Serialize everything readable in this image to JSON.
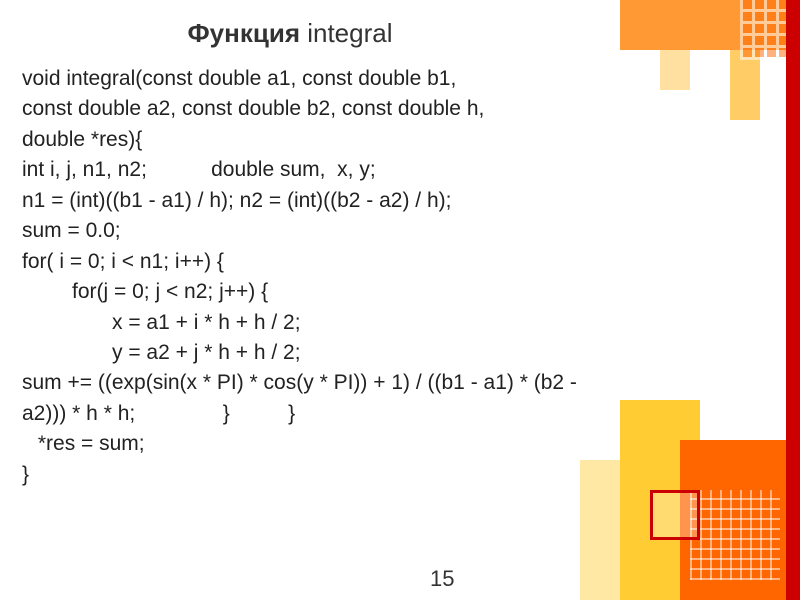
{
  "title": {
    "bold": "Функция",
    "normal": " integral"
  },
  "code": {
    "l1": "void integral(const double a1, const double b1,",
    "l2": "const double a2, const double b2, const double h,",
    "l3": "double *res){",
    "l4a": "int i, j, n1, n2;",
    "l4b": "double sum,  x, y;",
    "l5": "n1 = (int)((b1 - a1) / h); n2 = (int)((b2 - a2) / h);",
    "l6": "sum = 0.0;",
    "l7": "for( i = 0; i < n1; i++) {",
    "l8": "for(j = 0; j < n2; j++) {",
    "l9": "x = a1 + i * h + h / 2;",
    "l10": "y = a2 + j * h + h / 2;",
    "l11": "sum += ((exp(sin(x * PI) * cos(y * PI)) + 1) / ((b1 - a1) * (b2 - a2))) * h * h;               }          }",
    "l12": " *res = sum;",
    "l13": "}"
  },
  "page_number": "15",
  "colors": {
    "title_text": "#333333",
    "body_text": "#222222",
    "background": "#ffffff",
    "accent_orange": "#ff6600",
    "accent_yellow": "#ffcc33",
    "accent_red": "#cc0000"
  },
  "typography": {
    "title_fontsize": 26,
    "body_fontsize": 21,
    "font_family": "Verdana"
  }
}
